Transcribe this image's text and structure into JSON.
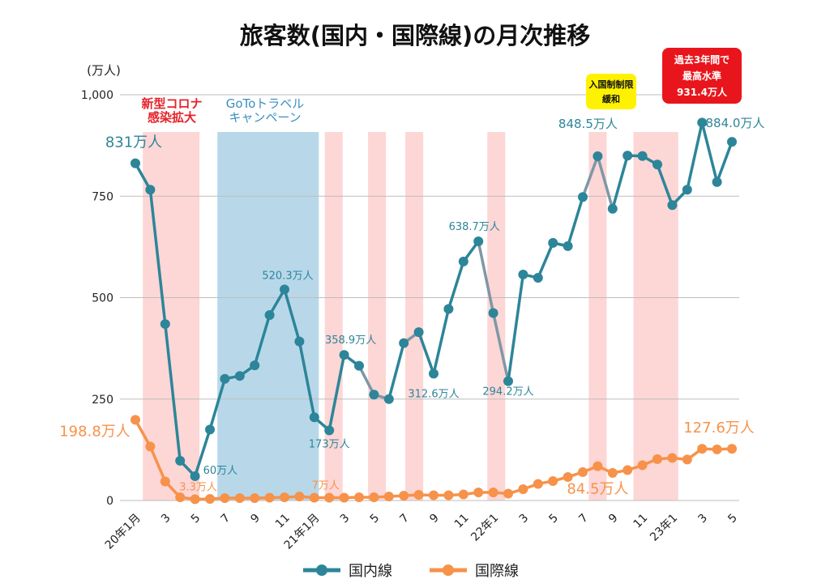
{
  "chart_data": {
    "type": "line",
    "title": "旅客数(国内・国際線)の月次推移",
    "unit_label": "(万人)",
    "ylim": [
      0,
      1000
    ],
    "y_ticks": [
      {
        "value": 0,
        "label": "0"
      },
      {
        "value": 250,
        "label": "250"
      },
      {
        "value": 500,
        "label": "500"
      },
      {
        "value": 750,
        "label": "750"
      },
      {
        "value": 1000,
        "label": "1,000"
      }
    ],
    "x_labels": [
      {
        "index": 0,
        "label": "20年1月"
      },
      {
        "index": 2,
        "label": "3"
      },
      {
        "index": 4,
        "label": "5"
      },
      {
        "index": 6,
        "label": "7"
      },
      {
        "index": 8,
        "label": "9"
      },
      {
        "index": 10,
        "label": "11"
      },
      {
        "index": 12,
        "label": "21年1月"
      },
      {
        "index": 14,
        "label": "3"
      },
      {
        "index": 16,
        "label": "5"
      },
      {
        "index": 18,
        "label": "7"
      },
      {
        "index": 20,
        "label": "9"
      },
      {
        "index": 22,
        "label": "11"
      },
      {
        "index": 24,
        "label": "22年1"
      },
      {
        "index": 26,
        "label": "3"
      },
      {
        "index": 28,
        "label": "5"
      },
      {
        "index": 30,
        "label": "7"
      },
      {
        "index": 32,
        "label": "9"
      },
      {
        "index": 34,
        "label": "11"
      },
      {
        "index": 36,
        "label": "23年1"
      },
      {
        "index": 38,
        "label": "3"
      },
      {
        "index": 40,
        "label": "5"
      }
    ],
    "series": [
      {
        "name": "国内線",
        "color": "#2d8599",
        "values": [
          831,
          766,
          435,
          98,
          60,
          175,
          300,
          307,
          333,
          457,
          520.3,
          392,
          205,
          173,
          358.9,
          332,
          261,
          250,
          388,
          415,
          312.6,
          472,
          589,
          638.7,
          462,
          294.2,
          557,
          549,
          635,
          627,
          748,
          848.5,
          719,
          850,
          849,
          828,
          728,
          766,
          931.4,
          785,
          884
        ]
      },
      {
        "name": "国際線",
        "color": "#f7924a",
        "values": [
          198.8,
          133,
          47,
          8,
          3.3,
          4,
          6,
          6,
          6,
          7,
          8,
          10,
          7,
          7,
          7,
          8,
          8,
          10,
          12,
          14,
          13,
          13,
          15,
          20,
          20,
          17,
          28,
          41,
          48,
          58,
          70,
          84.5,
          68,
          75,
          87,
          102,
          105,
          101,
          127.6,
          126,
          127.6
        ]
      }
    ],
    "gray_segments": [
      [
        15,
        16
      ],
      [
        16,
        17
      ],
      [
        18,
        19
      ],
      [
        23,
        24
      ],
      [
        24,
        25
      ],
      [
        30,
        31
      ],
      [
        31,
        32
      ]
    ],
    "shaded_periods": [
      {
        "start": 0.5,
        "end": 4.3,
        "kind": "red"
      },
      {
        "start": 5.5,
        "end": 12.3,
        "kind": "blue"
      },
      {
        "start": 12.7,
        "end": 13.9,
        "kind": "red"
      },
      {
        "start": 15.6,
        "end": 16.8,
        "kind": "red"
      },
      {
        "start": 18.1,
        "end": 19.3,
        "kind": "red"
      },
      {
        "start": 23.6,
        "end": 24.8,
        "kind": "red"
      },
      {
        "start": 30.4,
        "end": 31.6,
        "kind": "red"
      },
      {
        "start": 33.4,
        "end": 36.4,
        "kind": "red"
      }
    ],
    "data_labels": [
      {
        "series": 0,
        "index": 0,
        "text": "831万人",
        "size": 18,
        "dx": -2,
        "dy": -20,
        "anchor": "middle"
      },
      {
        "series": 0,
        "index": 4,
        "text": "60万人",
        "size": 13,
        "dx": 10,
        "dy": -3,
        "anchor": "start"
      },
      {
        "series": 0,
        "index": 10,
        "text": "520.3万人",
        "size": 13,
        "dx": 4,
        "dy": -13,
        "anchor": "middle"
      },
      {
        "series": 0,
        "index": 13,
        "text": "173万人",
        "size": 13,
        "dx": 0,
        "dy": 21,
        "anchor": "middle"
      },
      {
        "series": 0,
        "index": 14,
        "text": "358.9万人",
        "size": 13,
        "dx": 8,
        "dy": -14,
        "anchor": "middle"
      },
      {
        "series": 0,
        "index": 20,
        "text": "312.6万人",
        "size": 13,
        "dx": 0,
        "dy": 29,
        "anchor": "middle"
      },
      {
        "series": 0,
        "index": 23,
        "text": "638.7万人",
        "size": 13,
        "dx": -5,
        "dy": -14,
        "anchor": "middle"
      },
      {
        "series": 0,
        "index": 25,
        "text": "294.2万人",
        "size": 13,
        "dx": 0,
        "dy": 17,
        "anchor": "middle"
      },
      {
        "series": 0,
        "index": 31,
        "text": "848.5万人",
        "size": 15,
        "dx": -12,
        "dy": -35,
        "anchor": "middle"
      },
      {
        "series": 0,
        "index": 40,
        "text": "884.0万人",
        "size": 15,
        "dx": 4,
        "dy": -18,
        "anchor": "middle"
      },
      {
        "series": 1,
        "index": 0,
        "text": "198.8万人",
        "size": 18,
        "dx": -50,
        "dy": 20,
        "anchor": "middle"
      },
      {
        "series": 1,
        "index": 4,
        "text": "3.3万人",
        "size": 13,
        "dx": 4,
        "dy": -11,
        "anchor": "middle"
      },
      {
        "series": 1,
        "index": 12,
        "text": "7万人",
        "size": 13,
        "dx": 14,
        "dy": -11,
        "anchor": "middle"
      },
      {
        "series": 1,
        "index": 31,
        "text": "84.5万人",
        "size": 18,
        "dx": 0,
        "dy": 34,
        "anchor": "middle"
      },
      {
        "series": 1,
        "index": 40,
        "text": "127.6万人",
        "size": 18,
        "dx": -16,
        "dy": -20,
        "anchor": "middle"
      }
    ],
    "annotations": {
      "covid": {
        "line1": "新型コロナ",
        "line2": "感染拡大",
        "color": "#e5232a"
      },
      "goto": {
        "line1": "GoToトラベル",
        "line2": "キャンペーン",
        "color": "#3a8fbf"
      },
      "border": {
        "line1": "入国制制限",
        "line2": "緩和",
        "color": "#fff200"
      },
      "peak": {
        "line1": "過去3年間で",
        "line2": "最高水準",
        "line3": "931.4万人",
        "color": "#e8161c"
      }
    }
  },
  "legend": {
    "domestic": "国内線",
    "international": "国際線"
  }
}
